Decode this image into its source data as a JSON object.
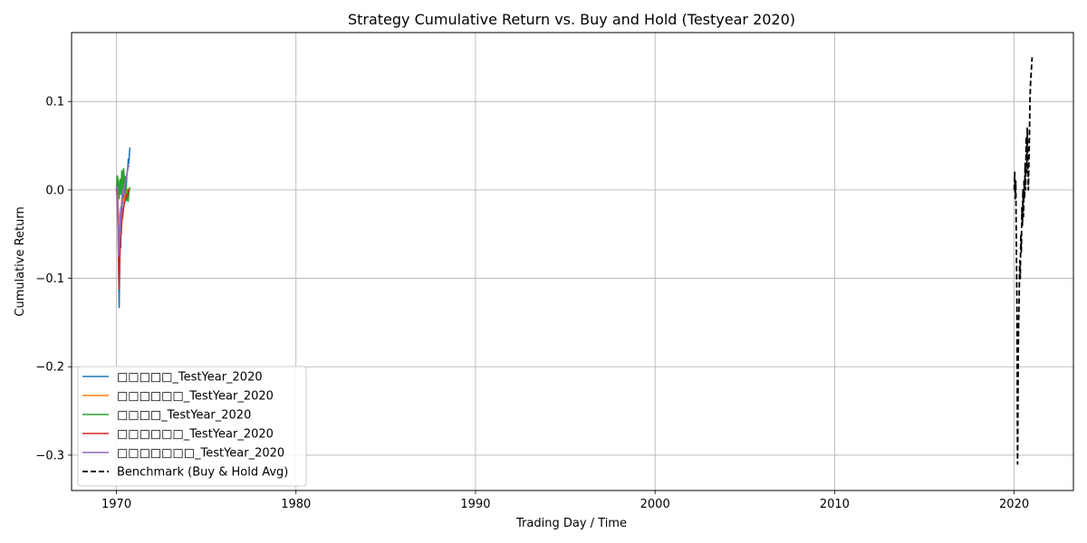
{
  "chart_data": {
    "type": "line",
    "title": "Strategy Cumulative Return vs. Buy and Hold (Testyear 2020)",
    "xlabel": "Trading Day / Time",
    "ylabel": "Cumulative Return",
    "xlim": [
      1967.5,
      2023.3
    ],
    "ylim": [
      -0.34,
      0.178
    ],
    "x_ticks": [
      1970,
      1980,
      1990,
      2000,
      2010,
      2020
    ],
    "x_tick_labels": [
      "1970",
      "1980",
      "1990",
      "2000",
      "2010",
      "2020"
    ],
    "y_ticks": [
      -0.3,
      -0.2,
      -0.1,
      0.0,
      0.1
    ],
    "y_tick_labels": [
      "−0.3",
      "−0.2",
      "−0.1",
      "0.0",
      "0.1"
    ],
    "grid": true,
    "legend_position": "lower-left",
    "series": [
      {
        "name": "□□□□□_TestYear_2020",
        "color": "#1f77b4",
        "style": "solid",
        "x": [
          1970.0,
          1970.03,
          1970.06,
          1970.09,
          1970.12,
          1970.15,
          1970.18,
          1970.21,
          1970.24,
          1970.27,
          1970.3,
          1970.33,
          1970.36,
          1970.39,
          1970.42,
          1970.45,
          1970.48,
          1970.51,
          1970.54,
          1970.57,
          1970.6,
          1970.63,
          1970.66,
          1970.69,
          1970.72,
          1970.75
        ],
        "y": [
          0.0,
          0.008,
          -0.005,
          -0.03,
          -0.08,
          -0.133,
          -0.09,
          -0.05,
          -0.065,
          -0.02,
          -0.03,
          0.0,
          -0.015,
          0.005,
          -0.01,
          0.0,
          0.01,
          0.005,
          0.0,
          0.015,
          0.02,
          0.025,
          0.035,
          0.03,
          0.04,
          0.048
        ]
      },
      {
        "name": "□□□□□□_TestYear_2020",
        "color": "#ff7f0e",
        "style": "solid",
        "x": [
          1970.0,
          1970.05,
          1970.1,
          1970.15,
          1970.2,
          1970.25,
          1970.3,
          1970.35,
          1970.4,
          1970.45,
          1970.5,
          1970.55,
          1970.6,
          1970.65,
          1970.7
        ],
        "y": [
          0.0,
          -0.004,
          -0.02,
          -0.04,
          -0.03,
          -0.02,
          -0.015,
          -0.01,
          -0.012,
          -0.008,
          -0.004,
          -0.002,
          0.0,
          0.001,
          0.0
        ]
      },
      {
        "name": "□□□□_TestYear_2020",
        "color": "#2ca02c",
        "style": "solid",
        "x": [
          1970.0,
          1970.05,
          1970.1,
          1970.15,
          1970.2,
          1970.25,
          1970.3,
          1970.35,
          1970.4,
          1970.45,
          1970.5,
          1970.55,
          1970.6,
          1970.65,
          1970.7,
          1970.75
        ],
        "y": [
          0.0,
          0.016,
          0.01,
          -0.01,
          0.012,
          -0.005,
          0.022,
          0.0,
          0.024,
          0.006,
          0.015,
          -0.012,
          -0.005,
          -0.013,
          -0.002,
          0.003
        ]
      },
      {
        "name": "□□□□□□_TestYear_2020",
        "color": "#d62728",
        "style": "solid",
        "x": [
          1970.0,
          1970.03,
          1970.06,
          1970.09,
          1970.12,
          1970.15,
          1970.18,
          1970.21,
          1970.24,
          1970.27,
          1970.3,
          1970.35,
          1970.4,
          1970.45,
          1970.5,
          1970.55,
          1970.6,
          1970.65,
          1970.7
        ],
        "y": [
          0.0,
          -0.005,
          -0.02,
          -0.05,
          -0.09,
          -0.112,
          -0.08,
          -0.06,
          -0.04,
          -0.05,
          -0.035,
          -0.03,
          -0.02,
          -0.015,
          -0.01,
          -0.005,
          -0.008,
          0.0,
          -0.002
        ]
      },
      {
        "name": "□□□□□□□_TestYear_2020",
        "color": "#9467bd",
        "style": "solid",
        "x": [
          1970.0,
          1970.03,
          1970.06,
          1970.09,
          1970.12,
          1970.15,
          1970.18,
          1970.21,
          1970.24,
          1970.27,
          1970.3,
          1970.35,
          1970.4,
          1970.45,
          1970.5,
          1970.55,
          1970.6,
          1970.65,
          1970.7
        ],
        "y": [
          0.0,
          0.004,
          -0.01,
          -0.04,
          -0.075,
          -0.06,
          -0.04,
          -0.05,
          -0.02,
          -0.03,
          -0.01,
          0.0,
          -0.005,
          0.005,
          0.01,
          0.015,
          0.02,
          0.025,
          0.028
        ]
      },
      {
        "name": "Benchmark (Buy & Hold Avg)",
        "color": "#000000",
        "style": "dashed",
        "x": [
          2020.0,
          2020.03,
          2020.06,
          2020.09,
          2020.12,
          2020.15,
          2020.17,
          2020.19,
          2020.21,
          2020.23,
          2020.25,
          2020.28,
          2020.31,
          2020.34,
          2020.37,
          2020.4,
          2020.43,
          2020.46,
          2020.49,
          2020.52,
          2020.55,
          2020.58,
          2020.61,
          2020.64,
          2020.67,
          2020.7,
          2020.73,
          2020.76,
          2020.79,
          2020.82,
          2020.85,
          2020.88,
          2020.91,
          2020.94,
          2020.97,
          2021.0
        ],
        "y": [
          0.0,
          0.02,
          -0.01,
          0.01,
          -0.06,
          -0.12,
          -0.2,
          -0.31,
          -0.25,
          -0.18,
          -0.15,
          -0.12,
          -0.08,
          -0.1,
          -0.05,
          -0.07,
          -0.02,
          -0.04,
          0.0,
          -0.03,
          0.01,
          -0.01,
          0.03,
          0.0,
          0.06,
          0.02,
          0.07,
          0.04,
          0.0,
          0.03,
          0.06,
          0.1,
          0.12,
          0.13,
          0.14,
          0.15
        ]
      }
    ]
  }
}
